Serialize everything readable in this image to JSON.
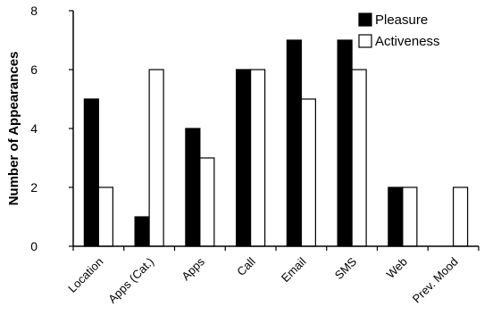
{
  "chart_data": {
    "type": "bar",
    "title": "",
    "xlabel": "",
    "ylabel": "Number of Appearances",
    "ylim": [
      0,
      8
    ],
    "yticks": [
      "0",
      "2",
      "4",
      "6",
      "8"
    ],
    "categories": [
      "Location",
      "Apps (Cat.)",
      "Apps",
      "Call",
      "Email",
      "SMS",
      "Web",
      "Prev. Mood"
    ],
    "series": [
      {
        "name": "Pleasure",
        "values": [
          5,
          1,
          4,
          6,
          7,
          7,
          2,
          0
        ],
        "fill": "#000000"
      },
      {
        "name": "Activeness",
        "values": [
          2,
          6,
          3,
          6,
          5,
          6,
          2,
          2
        ],
        "fill": "#ffffff"
      }
    ],
    "legend_position": "top-right",
    "grid": false
  }
}
